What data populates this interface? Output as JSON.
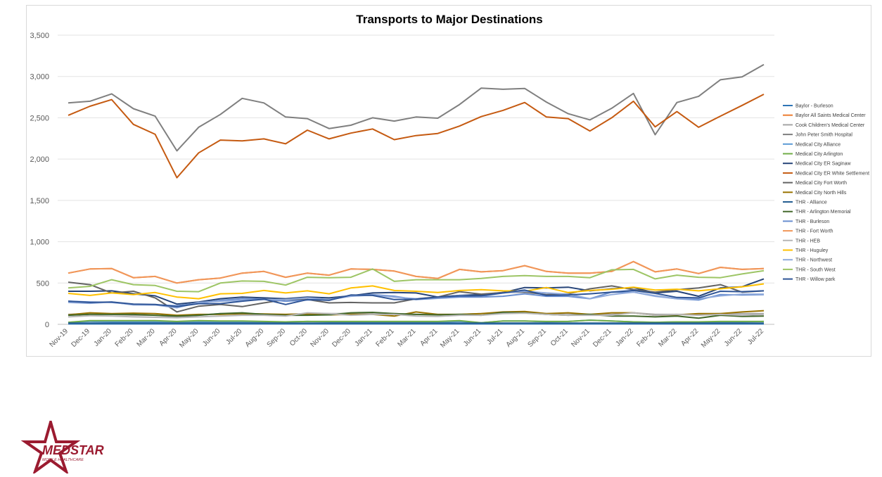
{
  "chart_data": {
    "type": "line",
    "title": "Transports to Major Destinations",
    "xlabel": "",
    "ylabel": "",
    "ylim": [
      0,
      3500
    ],
    "yticks": [
      0,
      500,
      1000,
      1500,
      2000,
      2500,
      3000,
      3500
    ],
    "ytick_labels": [
      "0",
      "500",
      "1,000",
      "1,500",
      "2,000",
      "2,500",
      "3,000",
      "3,500"
    ],
    "grid": "horizontal",
    "legend_position": "right",
    "categories": [
      "Nov-19",
      "Dec-19",
      "Jan-20",
      "Feb-20",
      "Mar-20",
      "Apr-20",
      "May-20",
      "Jun-20",
      "Jul-20",
      "Aug-20",
      "Sep-20",
      "Oct-20",
      "Nov-20",
      "Dec-20",
      "Jan-21",
      "Feb-21",
      "Mar-21",
      "Apr-21",
      "May-21",
      "Jun-21",
      "Jul-21",
      "Aug-21",
      "Sep-21",
      "Oct-21",
      "Nov-21",
      "Dec-21",
      "Jan-22",
      "Feb-22",
      "Mar-22",
      "Apr-22",
      "May-22",
      "Jun-22",
      "Jul-22"
    ],
    "series": [
      {
        "name": "Baylor - Burleson",
        "color": "#2e75b6",
        "values": [
          5,
          5,
          5,
          5,
          5,
          5,
          5,
          5,
          5,
          5,
          5,
          5,
          5,
          5,
          5,
          5,
          5,
          5,
          5,
          5,
          5,
          5,
          5,
          5,
          5,
          5,
          5,
          5,
          5,
          5,
          5,
          5,
          5
        ]
      },
      {
        "name": "Baylor All Saints Medical Center",
        "color": "#ed7d31",
        "values": [
          620,
          670,
          675,
          565,
          580,
          500,
          540,
          560,
          620,
          640,
          570,
          620,
          595,
          670,
          665,
          645,
          580,
          555,
          665,
          635,
          650,
          710,
          640,
          620,
          620,
          640,
          760,
          635,
          670,
          615,
          690,
          665,
          675
        ]
      },
      {
        "name": "Cook Children's Medical Center",
        "color": "#a5a5a5",
        "values": [
          120,
          130,
          120,
          110,
          110,
          90,
          110,
          130,
          120,
          120,
          120,
          130,
          130,
          130,
          140,
          130,
          120,
          120,
          120,
          130,
          140,
          150,
          130,
          130,
          120,
          120,
          140,
          120,
          120,
          120,
          130,
          130,
          130
        ]
      },
      {
        "name": "John Peter Smith Hospital",
        "color": "#7f7f7f",
        "values": [
          2680,
          2700,
          2790,
          2610,
          2520,
          2100,
          2385,
          2540,
          2735,
          2680,
          2510,
          2490,
          2370,
          2410,
          2500,
          2460,
          2510,
          2495,
          2660,
          2860,
          2845,
          2855,
          2690,
          2550,
          2475,
          2615,
          2795,
          2295,
          2685,
          2760,
          2960,
          2995,
          3145
        ]
      },
      {
        "name": "Medical City Alliance",
        "color": "#5b9bd5",
        "values": [
          25,
          35,
          30,
          30,
          30,
          25,
          30,
          30,
          30,
          30,
          30,
          35,
          30,
          30,
          30,
          30,
          30,
          25,
          35,
          20,
          40,
          40,
          30,
          35,
          50,
          40,
          30,
          25,
          30,
          25,
          30,
          30,
          35
        ]
      },
      {
        "name": "Medical City Arlington",
        "color": "#70ad47",
        "values": [
          25,
          45,
          45,
          45,
          45,
          35,
          45,
          40,
          40,
          35,
          30,
          35,
          35,
          35,
          35,
          35,
          35,
          35,
          45,
          20,
          40,
          40,
          35,
          35,
          50,
          40,
          30,
          25,
          30,
          30,
          35,
          35,
          35
        ]
      },
      {
        "name": "Medical City ER Saginaw",
        "color": "#264478",
        "values": [
          400,
          400,
          405,
          370,
          345,
          245,
          270,
          310,
          330,
          320,
          310,
          330,
          320,
          345,
          380,
          385,
          380,
          330,
          350,
          360,
          385,
          445,
          440,
          450,
          405,
          430,
          445,
          380,
          400,
          340,
          440,
          455,
          550
        ]
      },
      {
        "name": "Medical City ER White Settlement",
        "color": "#c55a11",
        "values": [
          2530,
          2640,
          2720,
          2420,
          2300,
          1775,
          2075,
          2230,
          2220,
          2245,
          2185,
          2350,
          2245,
          2315,
          2365,
          2235,
          2285,
          2310,
          2400,
          2515,
          2590,
          2685,
          2510,
          2490,
          2340,
          2500,
          2700,
          2390,
          2575,
          2385,
          2520,
          2650,
          2785
        ]
      },
      {
        "name": "Medical City Fort Worth",
        "color": "#636363",
        "values": [
          510,
          480,
          380,
          400,
          320,
          150,
          220,
          240,
          215,
          260,
          300,
          300,
          260,
          265,
          260,
          260,
          310,
          330,
          395,
          365,
          385,
          390,
          360,
          370,
          430,
          465,
          420,
          390,
          420,
          440,
          480,
          390,
          405
        ]
      },
      {
        "name": "Medical City North Hills",
        "color": "#997300",
        "values": [
          115,
          140,
          130,
          135,
          130,
          110,
          120,
          120,
          130,
          125,
          120,
          125,
          115,
          120,
          120,
          100,
          150,
          120,
          120,
          130,
          150,
          155,
          130,
          140,
          120,
          140,
          140,
          110,
          115,
          130,
          130,
          150,
          165
        ]
      },
      {
        "name": "THR - Alliance",
        "color": "#255e91",
        "values": [
          15,
          15,
          15,
          15,
          15,
          15,
          15,
          15,
          15,
          15,
          15,
          15,
          15,
          15,
          15,
          15,
          15,
          15,
          15,
          15,
          15,
          15,
          15,
          15,
          15,
          15,
          15,
          15,
          15,
          15,
          15,
          15,
          15
        ]
      },
      {
        "name": "THR - Arlington Memorial",
        "color": "#43682b",
        "values": [
          110,
          120,
          120,
          120,
          110,
          100,
          110,
          130,
          140,
          120,
          110,
          110,
          115,
          140,
          145,
          130,
          120,
          115,
          120,
          110,
          145,
          140,
          120,
          110,
          120,
          100,
          100,
          90,
          100,
          75,
          110,
          95,
          100
        ]
      },
      {
        "name": "THR - Burleson",
        "color": "#698ed0",
        "values": [
          280,
          270,
          265,
          240,
          235,
          225,
          255,
          290,
          310,
          305,
          280,
          295,
          300,
          350,
          360,
          340,
          300,
          315,
          330,
          330,
          340,
          370,
          340,
          340,
          310,
          390,
          390,
          345,
          310,
          295,
          360,
          355,
          360
        ]
      },
      {
        "name": "THR - Fort Worth",
        "color": "#f1975a",
        "values": [
          620,
          670,
          675,
          565,
          580,
          500,
          540,
          560,
          620,
          640,
          570,
          620,
          595,
          670,
          665,
          645,
          580,
          555,
          665,
          635,
          650,
          710,
          640,
          620,
          620,
          640,
          760,
          635,
          670,
          615,
          690,
          665,
          675
        ]
      },
      {
        "name": "THR - HEB",
        "color": "#b7b7b7",
        "values": [
          90,
          105,
          100,
          90,
          85,
          80,
          90,
          100,
          110,
          110,
          100,
          140,
          130,
          110,
          120,
          120,
          100,
          95,
          110,
          110,
          130,
          135,
          120,
          110,
          110,
          110,
          140,
          110,
          120,
          110,
          120,
          110,
          120
        ]
      },
      {
        "name": "THR - Huguley",
        "color": "#ffc000",
        "values": [
          375,
          350,
          380,
          360,
          385,
          330,
          310,
          370,
          375,
          410,
          380,
          405,
          370,
          440,
          465,
          410,
          400,
          385,
          410,
          420,
          405,
          400,
          445,
          385,
          410,
          425,
          450,
          415,
          425,
          405,
          430,
          455,
          490
        ]
      },
      {
        "name": "THR - Northwest",
        "color": "#8faadc",
        "values": [
          265,
          255,
          270,
          235,
          235,
          200,
          265,
          280,
          290,
          300,
          300,
          320,
          300,
          340,
          355,
          330,
          310,
          320,
          350,
          340,
          380,
          400,
          380,
          365,
          310,
          360,
          390,
          340,
          310,
          310,
          345,
          365,
          365
        ]
      },
      {
        "name": "THR - South West",
        "color": "#9dc565",
        "values": [
          440,
          460,
          540,
          480,
          470,
          400,
          395,
          500,
          525,
          520,
          475,
          570,
          565,
          570,
          670,
          520,
          540,
          540,
          540,
          555,
          580,
          590,
          580,
          580,
          565,
          660,
          665,
          550,
          595,
          570,
          565,
          610,
          650
        ]
      },
      {
        "name": "THR - Willow park",
        "color": "#2f5597",
        "values": [
          280,
          265,
          270,
          245,
          240,
          215,
          250,
          250,
          280,
          305,
          240,
          300,
          290,
          355,
          350,
          300,
          305,
          330,
          345,
          345,
          380,
          415,
          350,
          355,
          370,
          390,
          410,
          375,
          325,
          320,
          400,
          395,
          405
        ]
      }
    ]
  },
  "logo": {
    "brand_text": "MEDSTAR",
    "tagline": "MOBILE HEALTHCARE",
    "brand_color": "#9b1b30"
  }
}
